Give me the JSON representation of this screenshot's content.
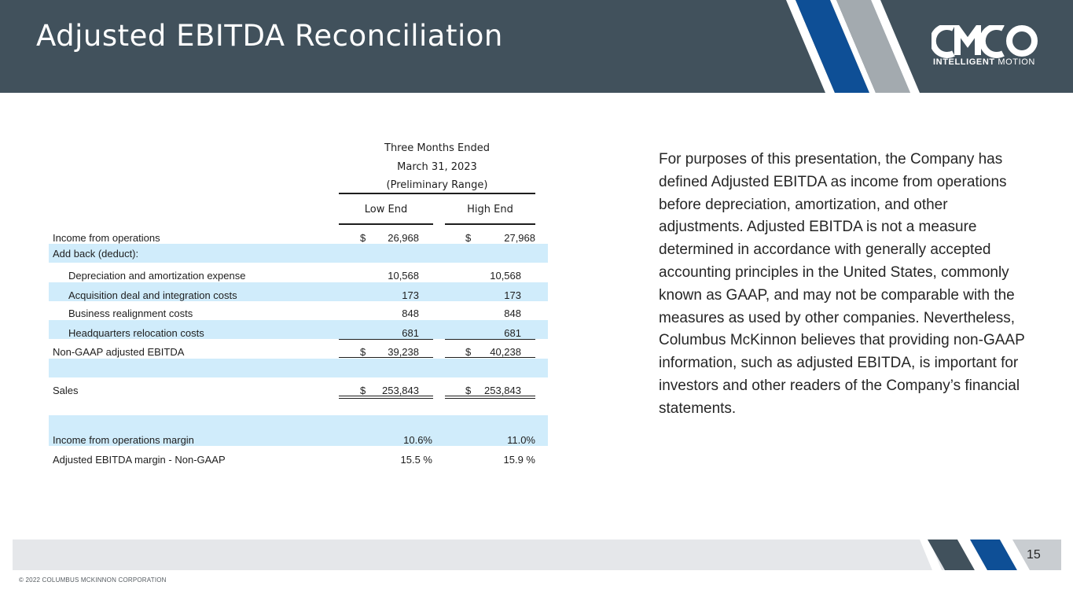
{
  "title": "Adjusted EBITDA Reconciliation",
  "logo": {
    "wordmark": "CMCO",
    "tagline_bold": "INTELLIGENT",
    "tagline_light": "MOTION"
  },
  "table": {
    "period_header": [
      "Three Months Ended",
      "March 31, 2023",
      "(Preliminary Range)"
    ],
    "columns": [
      "Low End",
      "High End"
    ],
    "rows": [
      {
        "label": "Income from operations",
        "cur1": "$",
        "low": "26,968",
        "cur2": "$",
        "high": "27,968"
      },
      {
        "label": "Add back (deduct):"
      },
      {
        "label": "Depreciation and amortization expense",
        "low": "10,568",
        "high": "10,568"
      },
      {
        "label": "Acquisition deal and integration costs",
        "low": "173",
        "high": "173"
      },
      {
        "label": "Business realignment costs",
        "low": "848",
        "high": "848"
      },
      {
        "label": "Headquarters relocation costs",
        "low": "681",
        "high": "681"
      },
      {
        "label": "Non-GAAP adjusted EBITDA",
        "cur1": "$",
        "low": "39,238",
        "cur2": "$",
        "high": "40,238"
      },
      {
        "label": "Sales",
        "cur1": "$",
        "low": "253,843",
        "cur2": "$",
        "high": "253,843"
      },
      {
        "label": "Income from operations margin",
        "low": "10.6%",
        "high": "11.0%"
      },
      {
        "label": "Adjusted EBITDA margin - Non-GAAP",
        "low": "15.5 %",
        "high": "15.9 %"
      }
    ]
  },
  "description": "For purposes of this presentation, the Company has defined Adjusted EBITDA as income from operations before depreciation, amortization, and other adjustments.  Adjusted EBITDA is not a measure determined in accordance with generally accepted accounting principles in the United States, commonly known as GAAP, and may not be comparable with the measures as used by other companies.  Nevertheless, Columbus McKinnon believes that providing non-GAAP information, such as adjusted EBITDA, is important for investors and other readers of the Company’s financial statements.",
  "page_number": "15",
  "copyright": "© 2022 COLUMBUS MCKINNON CORPORATION",
  "colors": {
    "header": "#41515c",
    "stripe_blue": "#0e4f96",
    "stripe_gray": "#a3aaaf",
    "row_shade": "#d0ecfb",
    "footer_bar": "#e5e7ea"
  }
}
